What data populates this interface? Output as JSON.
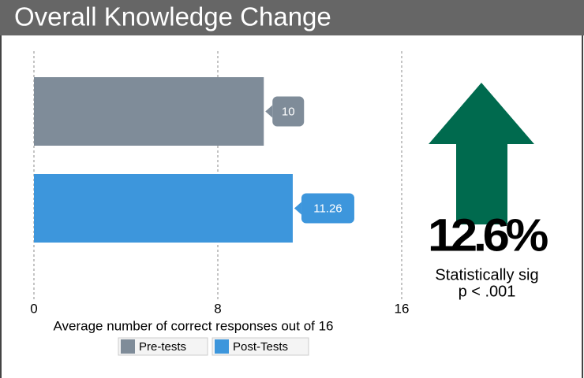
{
  "chart_data": {
    "type": "bar",
    "orientation": "horizontal",
    "title": "Overall Knowledge Change",
    "xlabel": "Average number of correct responses out of 16",
    "categories": [
      null
    ],
    "series": [
      {
        "name": "Pre-tests",
        "color": "#7f8c99",
        "values": [
          10
        ]
      },
      {
        "name": "Post-Tests",
        "color": "#3d96dc",
        "values": [
          11.26
        ]
      }
    ],
    "xlim": [
      0,
      16
    ],
    "xticks": [
      0,
      8,
      16
    ],
    "grid": true,
    "legend": "bottom",
    "annotations": [
      "12.6%",
      "Statistically sig",
      "p < .001"
    ],
    "arrow_color": "#006a4e"
  }
}
